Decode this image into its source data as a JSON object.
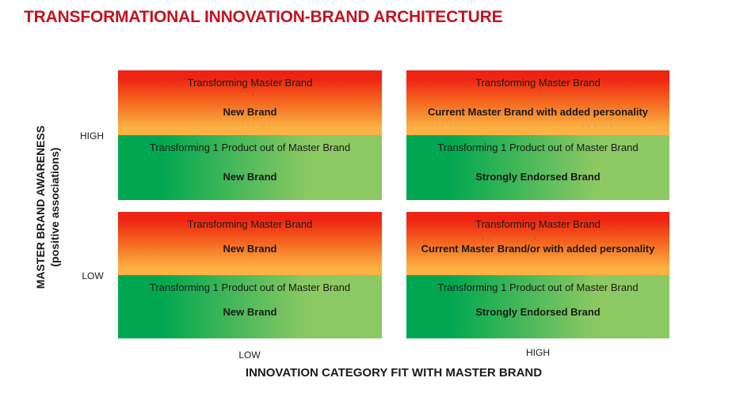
{
  "title": "TRANSFORMATIONAL INNOVATION-BRAND ARCHITECTURE",
  "colors": {
    "title_red": "#C2141F",
    "red_top": "#EE2312",
    "red_mid": "#F4661F",
    "orange_bottom": "#FBB143",
    "green_dark": "#00A750",
    "green_light": "#8CC963",
    "text_dark": "#1A1A1A"
  },
  "y_axis": {
    "label_line1": "MASTER BRAND AWARENESS",
    "label_line2": "(positive associations)",
    "high": "HIGH",
    "low": "LOW"
  },
  "x_axis": {
    "label": "INNOVATION CATEGORY FIT WITH MASTER BRAND",
    "low": "LOW",
    "high": "HIGH"
  },
  "quadrants": [
    {
      "position": "top-left",
      "red": {
        "line1": "Transforming Master Brand",
        "line2": "New Brand"
      },
      "green": {
        "line1": "Transforming 1 Product out of Master Brand",
        "line2": "New Brand"
      }
    },
    {
      "position": "top-right",
      "red": {
        "line1": "Transforming Master Brand",
        "line2": "Current Master Brand with added personality"
      },
      "green": {
        "line1": "Transforming 1 Product out of Master Brand",
        "line2": "Strongly Endorsed Brand"
      }
    },
    {
      "position": "bottom-left",
      "red": {
        "line1": "Transforming Master Brand",
        "line2": "New Brand"
      },
      "green": {
        "line1": "Transforming 1 Product out of Master Brand",
        "line2": "New Brand"
      }
    },
    {
      "position": "bottom-right",
      "red": {
        "line1": "Transforming Master Brand",
        "line2": "Current Master Brand/or with added personality"
      },
      "green": {
        "line1": "Transforming 1 Product out of Master Brand",
        "line2": "Strongly Endorsed Brand"
      }
    }
  ]
}
